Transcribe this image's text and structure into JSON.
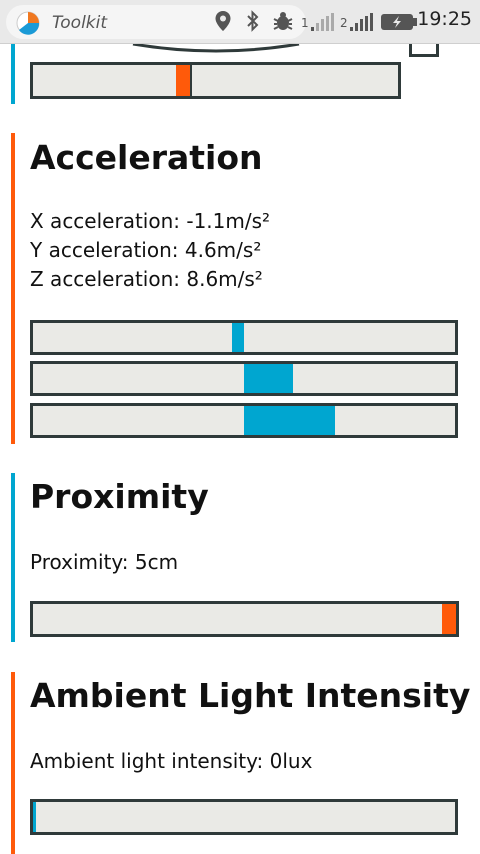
{
  "statusbar": {
    "app_title": "Toolkit",
    "sim1": "1",
    "sim2": "2",
    "time": "19:25"
  },
  "colors": {
    "orange": "#ff5a0a",
    "blue": "#00a6d0",
    "track_border": "#2f3a3a",
    "track_bg": "#eaeae6"
  },
  "prev_section": {
    "marker_value_fraction": 0.43
  },
  "acceleration": {
    "title": "Acceleration",
    "x_line": "X acceleration: -1.1m/s²",
    "y_line": "Y acceleration: 4.6m/s²",
    "z_line": "Z acceleration: 8.6m/s²",
    "x_value": -1.1,
    "y_value": 4.6,
    "z_value": 8.6
  },
  "proximity": {
    "title": "Proximity",
    "line": "Proximity: 5cm",
    "value_fraction": 1.0
  },
  "ambient": {
    "title": "Ambient Light Intensity",
    "line": "Ambient light intensity: 0lux",
    "value_fraction": 0.0
  }
}
